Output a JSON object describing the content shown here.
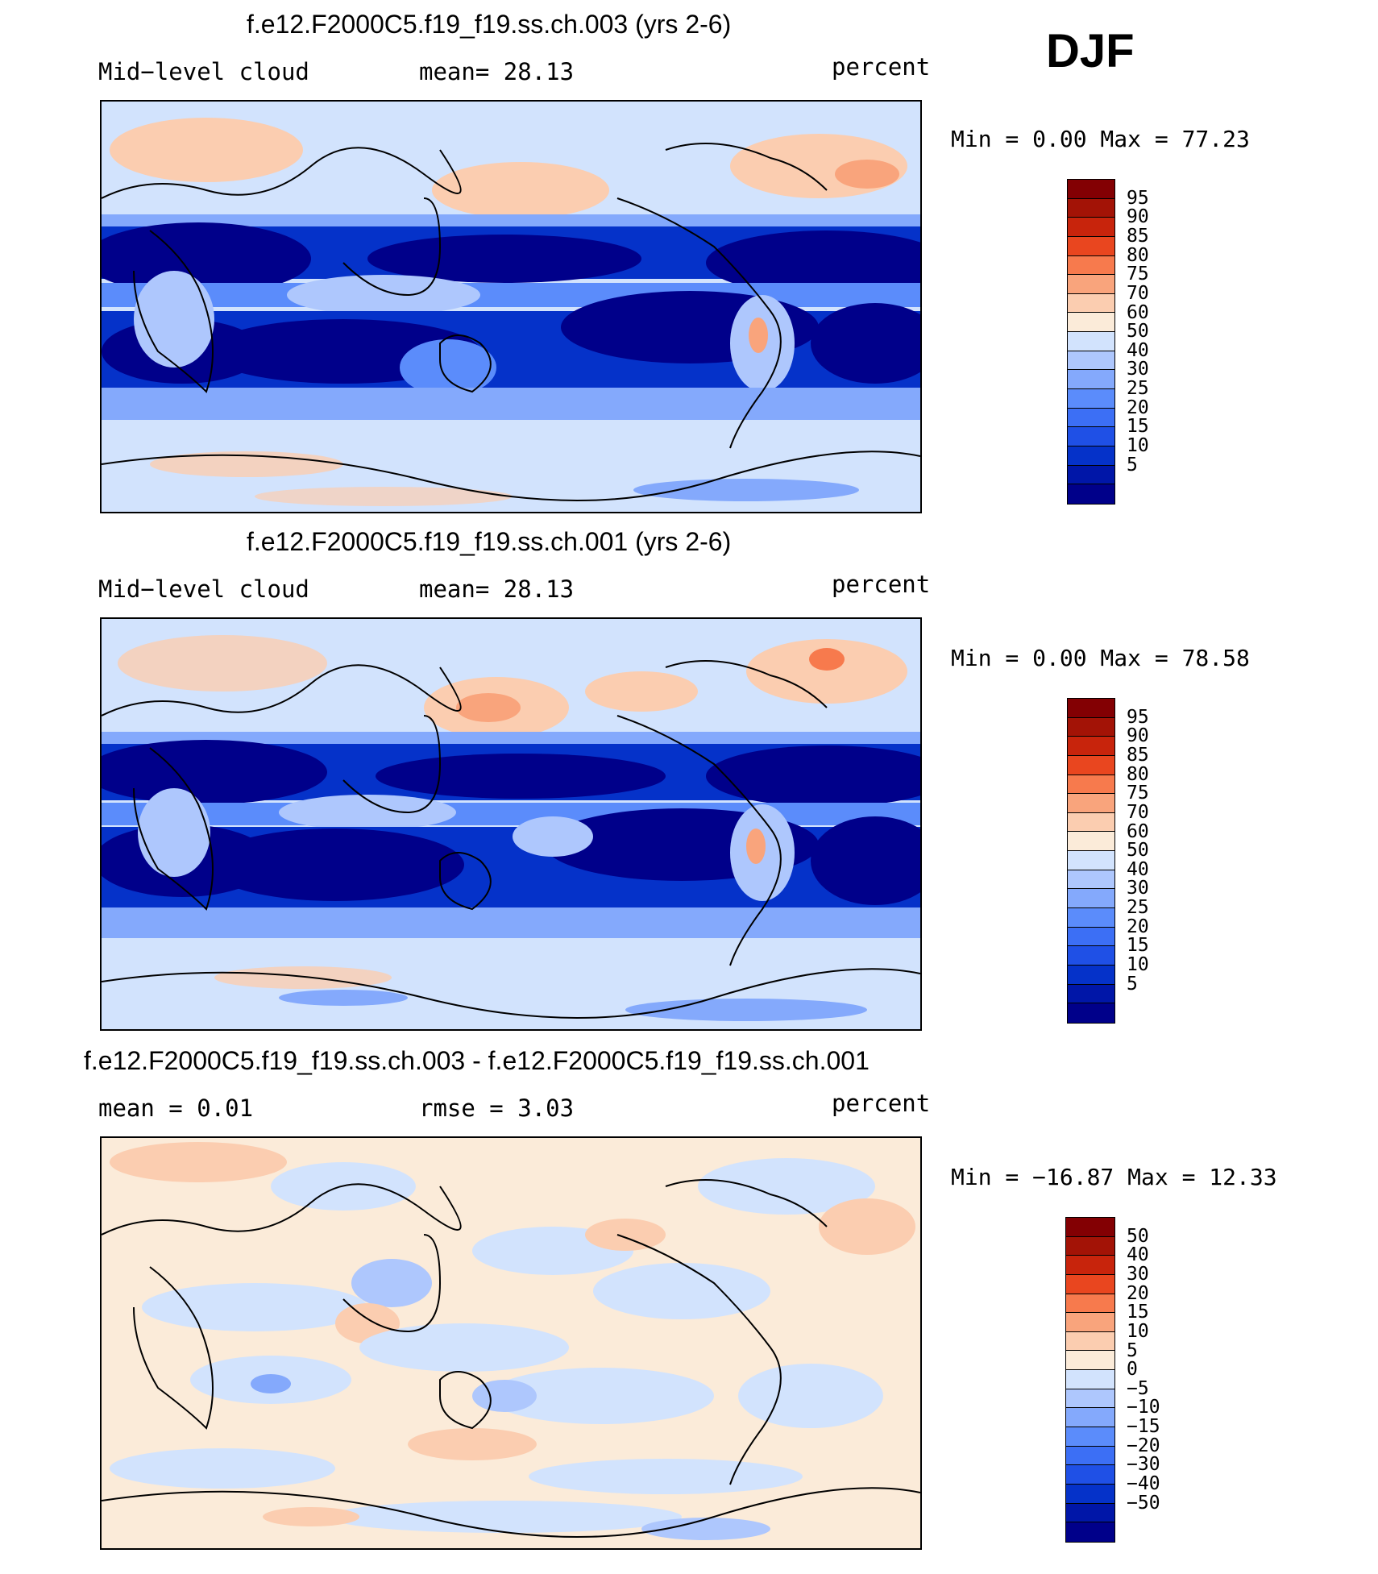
{
  "season": "DJF",
  "palette_levels": [
    "#00008a",
    "#0016a8",
    "#0532c9",
    "#1f50e6",
    "#3c6ff5",
    "#5b8cfb",
    "#84a9fc",
    "#aec7fd",
    "#d2e3fd",
    "#fbebd9",
    "#fbcdb0",
    "#f9a47c",
    "#f77a4d",
    "#e9461f",
    "#c8240c",
    "#a31306",
    "#830003"
  ],
  "panels": [
    {
      "title": "f.e12.F2000C5.f19_f19.ss.ch.003 (yrs 2-6)",
      "left_text": "Mid−level cloud",
      "center_text": "mean=   28.13",
      "right_text": "percent",
      "minmax": "Min =     0.00 Max =    77.23",
      "colorbar_ticks": [
        "95",
        "90",
        "85",
        "80",
        "75",
        "70",
        "60",
        "50",
        "40",
        "30",
        "25",
        "20",
        "15",
        "10",
        "5"
      ]
    },
    {
      "title": "f.e12.F2000C5.f19_f19.ss.ch.001 (yrs 2-6)",
      "left_text": "Mid−level cloud",
      "center_text": "mean=   28.13",
      "right_text": "percent",
      "minmax": "Min =     0.00 Max =    78.58",
      "colorbar_ticks": [
        "95",
        "90",
        "85",
        "80",
        "75",
        "70",
        "60",
        "50",
        "40",
        "30",
        "25",
        "20",
        "15",
        "10",
        "5"
      ]
    },
    {
      "title": "f.e12.F2000C5.f19_f19.ss.ch.003 - f.e12.F2000C5.f19_f19.ss.ch.001",
      "left_text": "mean =    0.01",
      "center_text": "rmse =    3.03",
      "right_text": "percent",
      "minmax": "Min = −16.87 Max =   12.33",
      "colorbar_ticks": [
        "50",
        "40",
        "30",
        "20",
        "15",
        "10",
        "5",
        "0",
        "−5",
        "−10",
        "−15",
        "−20",
        "−30",
        "−40",
        "−50"
      ]
    }
  ]
}
